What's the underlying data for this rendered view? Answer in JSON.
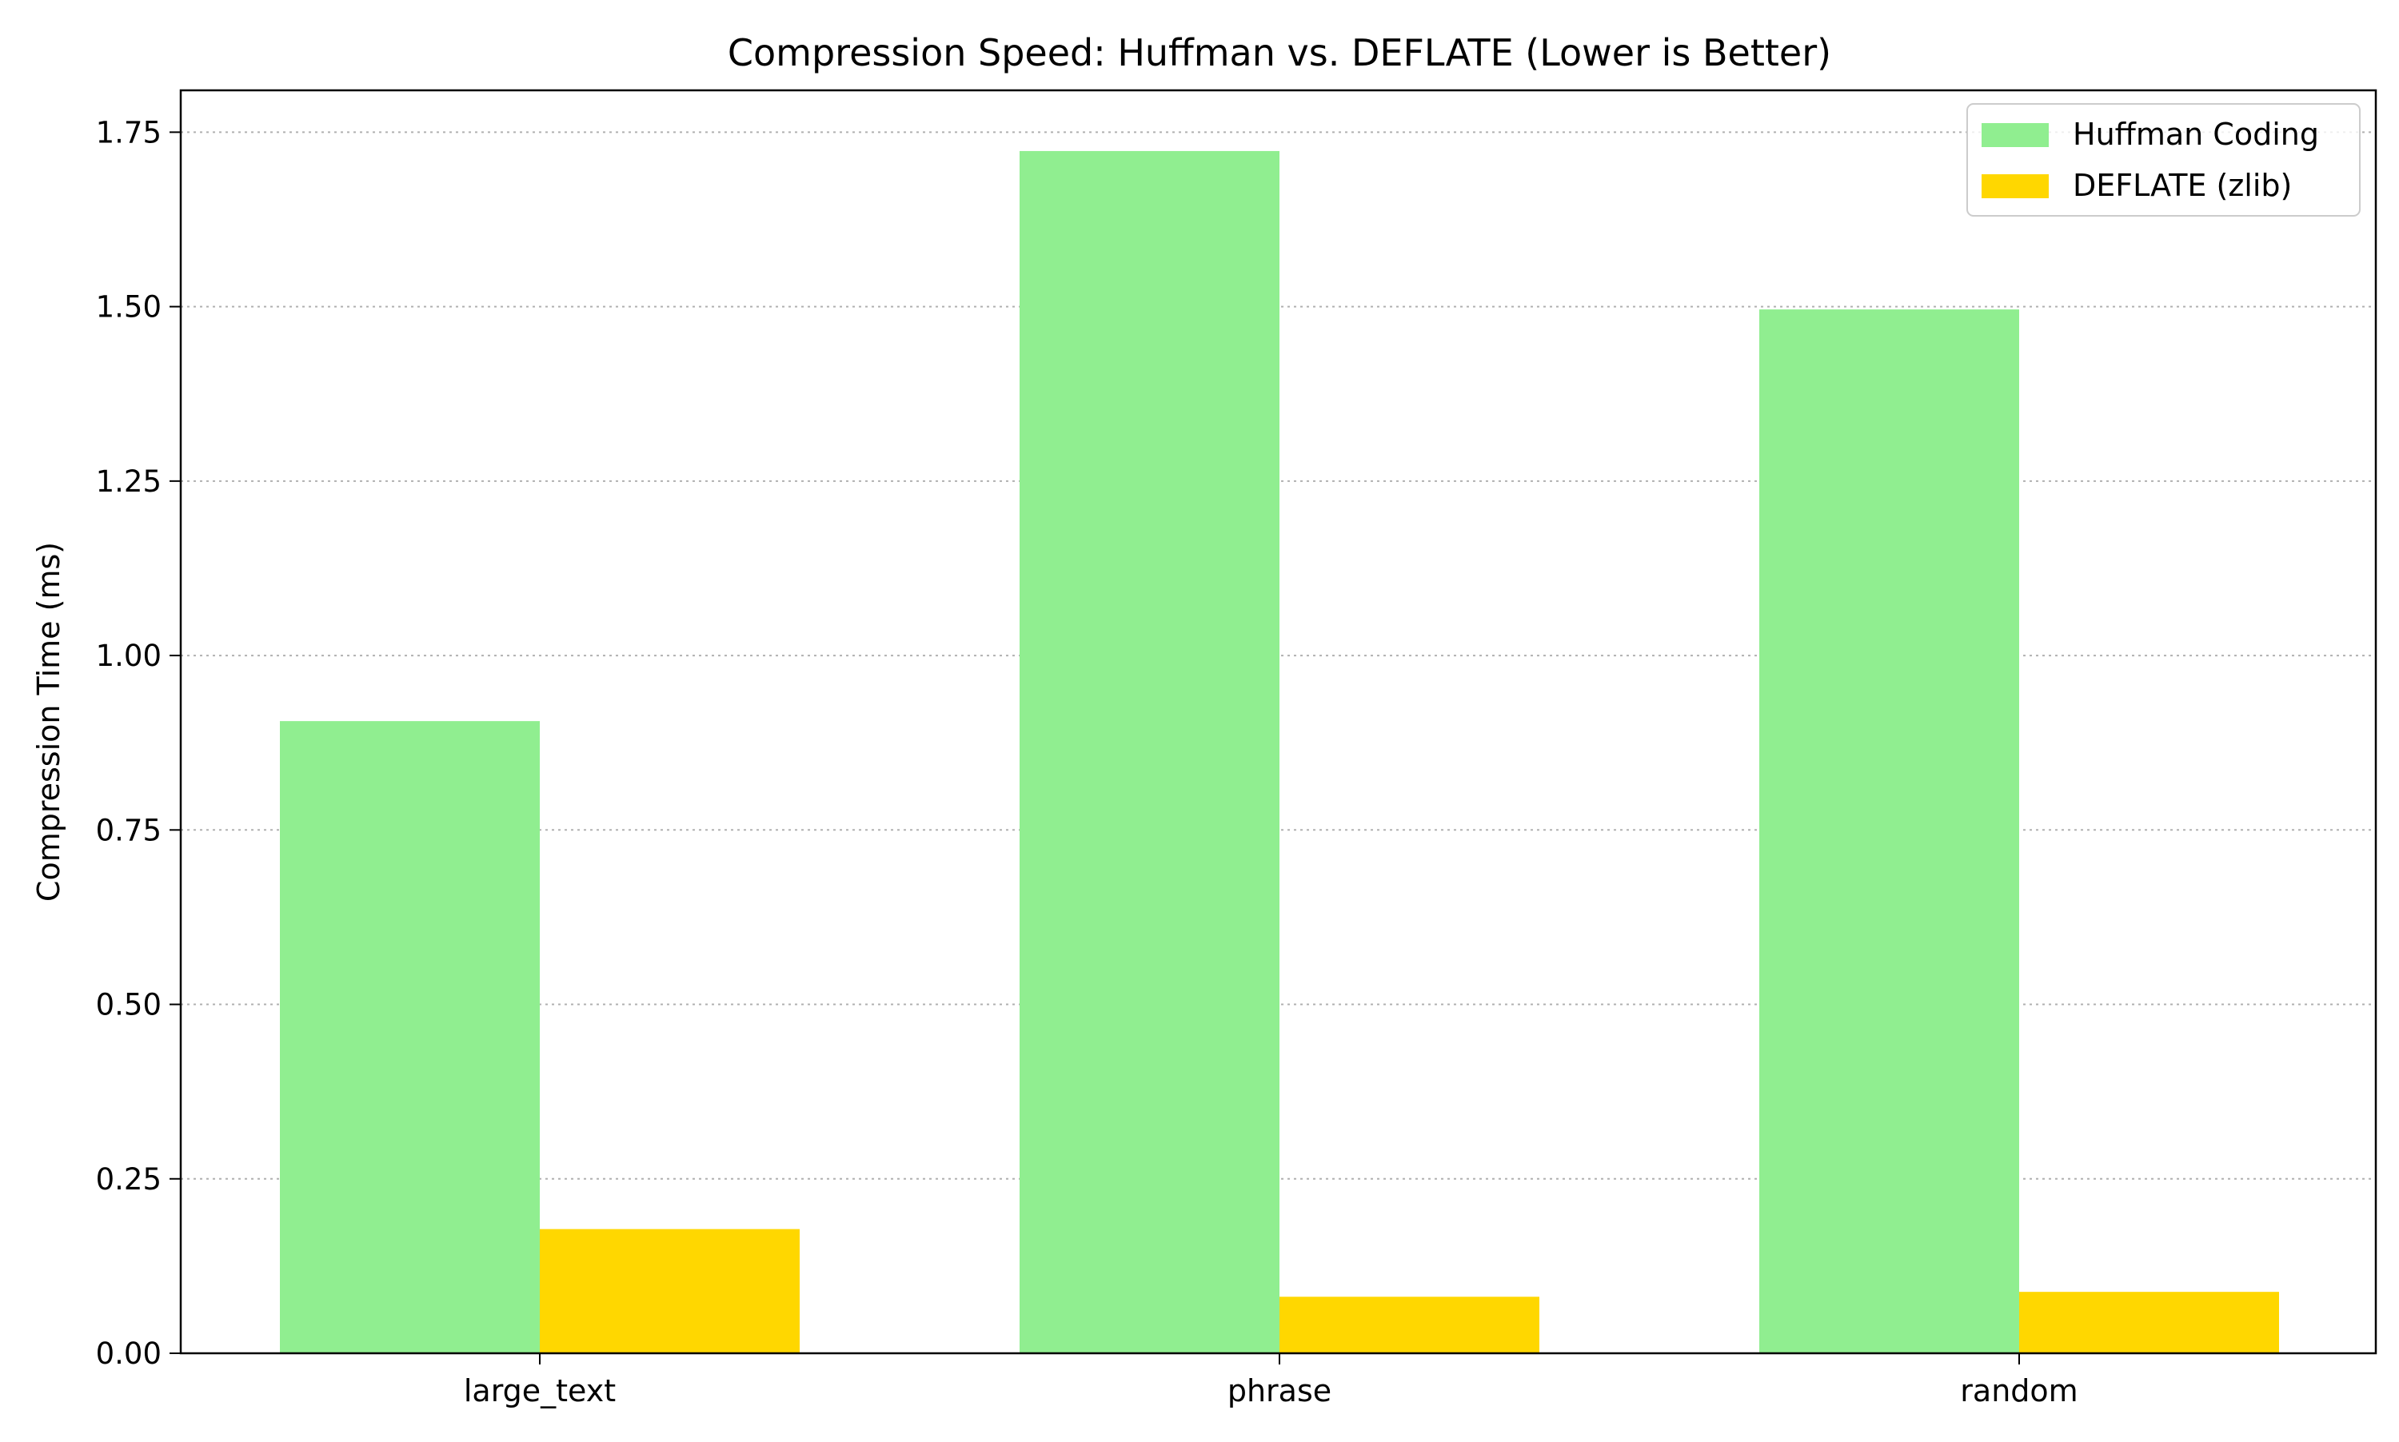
{
  "chart_data": {
    "type": "bar",
    "title": "Compression Speed: Huffman vs. DEFLATE (Lower is Better)",
    "xlabel": "",
    "ylabel": "Compression Time (ms)",
    "categories": [
      "large_text",
      "phrase",
      "random"
    ],
    "series": [
      {
        "name": "Huffman Coding",
        "color": "#90EE90",
        "values": [
          0.906,
          1.723,
          1.496
        ]
      },
      {
        "name": "DEFLATE (zlib)",
        "color": "#FFD700",
        "values": [
          0.178,
          0.081,
          0.088
        ]
      }
    ],
    "ylim": [
      0,
      1.81
    ],
    "yticks": [
      0.0,
      0.25,
      0.5,
      0.75,
      1.0,
      1.25,
      1.5,
      1.75
    ],
    "ytick_labels": [
      "0.00",
      "0.25",
      "0.50",
      "0.75",
      "1.00",
      "1.25",
      "1.50",
      "1.75"
    ],
    "grid": {
      "axis": "y",
      "style": "dotted",
      "color": "#b0b0b0"
    },
    "legend": {
      "position": "top-right"
    }
  }
}
